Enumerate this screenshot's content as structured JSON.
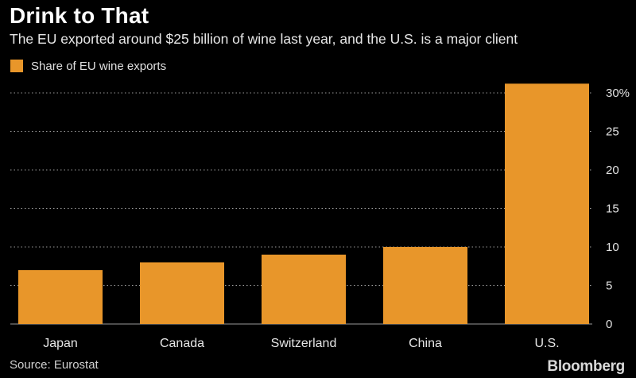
{
  "header": {
    "title": "Drink to That",
    "subtitle": "The EU exported around $25 billion of wine last year, and the U.S. is a major client"
  },
  "footer": {
    "source": "Source: Eurostat",
    "brand": "Bloomberg"
  },
  "colors": {
    "bar": "#E8962A",
    "grid": "#9a9a9a",
    "background": "#000000"
  },
  "chart_data": {
    "type": "bar",
    "title": "Drink to That",
    "subtitle": "The EU exported around $25 billion of wine last year, and the U.S. is a major client",
    "xlabel": "",
    "ylabel": "",
    "legend": [
      "Share of EU wine exports"
    ],
    "legend_position": "top-left",
    "categories": [
      "Japan",
      "Canada",
      "Switzerland",
      "China",
      "U.S."
    ],
    "series": [
      {
        "name": "Share of EU wine exports",
        "values": [
          7,
          8,
          9,
          10,
          31.2
        ]
      }
    ],
    "ylim": [
      0,
      30
    ],
    "yticks": [
      0,
      5,
      10,
      15,
      20,
      25,
      30
    ],
    "ytick_labels": [
      "0",
      "5",
      "10",
      "15",
      "20",
      "25",
      "30%"
    ],
    "grid": true,
    "y_axis_side": "right"
  }
}
